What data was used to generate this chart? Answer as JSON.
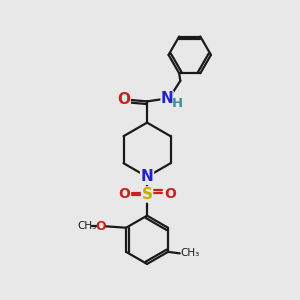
{
  "bg_color": "#e8e8e8",
  "bond_color": "#1a1a1a",
  "bond_width": 1.6,
  "N_color": "#2222cc",
  "O_color": "#cc2020",
  "S_color": "#ccaa00",
  "H_color": "#3a9090",
  "figsize": [
    3.0,
    3.0
  ],
  "dpi": 100,
  "xlim": [
    0,
    10
  ],
  "ylim": [
    0,
    10
  ]
}
